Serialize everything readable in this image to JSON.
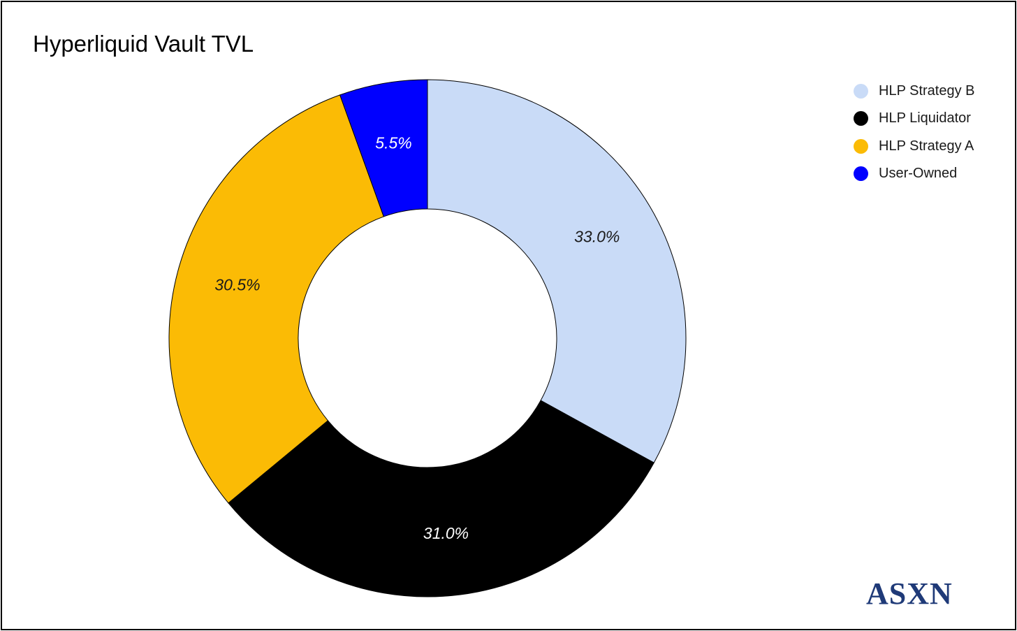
{
  "chart_data": {
    "type": "pie",
    "title": "Hyperliquid Vault TVL",
    "donut": true,
    "legend_position": "top-right",
    "slices": [
      {
        "name": "HLP Strategy B",
        "value": 33.0,
        "label": "33.0%",
        "color": "#c9dbf7",
        "label_color": "#1a1a1a"
      },
      {
        "name": "HLP Liquidator",
        "value": 31.0,
        "label": "31.0%",
        "color": "#000000",
        "label_color": "#ffffff"
      },
      {
        "name": "HLP Strategy A",
        "value": 30.5,
        "label": "30.5%",
        "color": "#fbbb05",
        "label_color": "#1a1a1a"
      },
      {
        "name": "User-Owned",
        "value": 5.5,
        "label": "5.5%",
        "color": "#0000ff",
        "label_color": "#ffffff"
      }
    ]
  },
  "logo": {
    "text": "ASXN"
  }
}
